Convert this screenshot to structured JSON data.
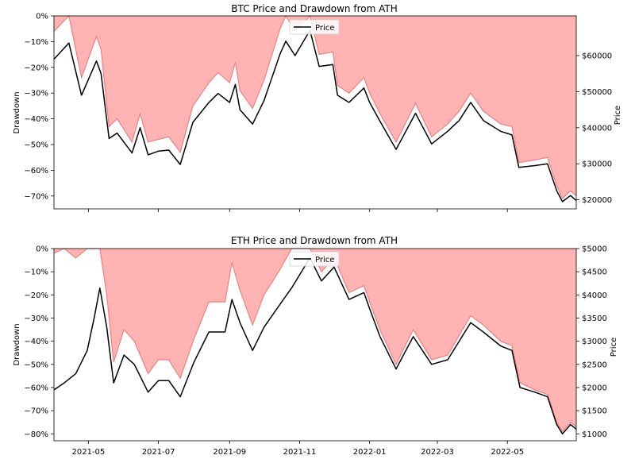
{
  "chart_data": [
    {
      "type": "area",
      "title": "BTC Price and Drawdown from ATH",
      "ylabel_left": "Drawdown",
      "ylabel_right": "Price",
      "drawdown_ylim": [
        -75,
        0
      ],
      "drawdown_ticks": [
        {
          "v": 0,
          "label": "0%"
        },
        {
          "v": -10,
          "label": "−10%"
        },
        {
          "v": -20,
          "label": "−20%"
        },
        {
          "v": -30,
          "label": "−30%"
        },
        {
          "v": -40,
          "label": "−40%"
        },
        {
          "v": -50,
          "label": "−50%"
        },
        {
          "v": -60,
          "label": "−60%"
        },
        {
          "v": -70,
          "label": "−70%"
        }
      ],
      "price_ylim": [
        17500,
        71000
      ],
      "price_ticks": [
        {
          "v": 20000,
          "label": "$20000"
        },
        {
          "v": 30000,
          "label": "$30000"
        },
        {
          "v": 40000,
          "label": "$40000"
        },
        {
          "v": 50000,
          "label": "$50000"
        },
        {
          "v": 60000,
          "label": "$60000"
        }
      ],
      "legend": [
        "Price"
      ],
      "legend_position": "top-center",
      "grid": false,
      "price_color": "#000000",
      "drawdown_fill_color": "#ffb3b3",
      "drawdown_line_color": "#f08080",
      "price_series": [
        [
          "2021-04-01",
          59000
        ],
        [
          "2021-04-14",
          63500
        ],
        [
          "2021-04-25",
          49000
        ],
        [
          "2021-05-08",
          58500
        ],
        [
          "2021-05-12",
          55000
        ],
        [
          "2021-05-19",
          37000
        ],
        [
          "2021-05-26",
          38500
        ],
        [
          "2021-06-08",
          33000
        ],
        [
          "2021-06-15",
          40000
        ],
        [
          "2021-06-22",
          32500
        ],
        [
          "2021-07-01",
          33500
        ],
        [
          "2021-07-10",
          33800
        ],
        [
          "2021-07-20",
          29800
        ],
        [
          "2021-07-31",
          41500
        ],
        [
          "2021-08-14",
          47000
        ],
        [
          "2021-08-22",
          49500
        ],
        [
          "2021-09-01",
          47000
        ],
        [
          "2021-09-06",
          52000
        ],
        [
          "2021-09-10",
          45000
        ],
        [
          "2021-09-21",
          41000
        ],
        [
          "2021-10-01",
          47500
        ],
        [
          "2021-10-15",
          60500
        ],
        [
          "2021-10-20",
          64000
        ],
        [
          "2021-10-28",
          60000
        ],
        [
          "2021-11-10",
          67000
        ],
        [
          "2021-11-18",
          57000
        ],
        [
          "2021-11-30",
          57500
        ],
        [
          "2021-12-04",
          49000
        ],
        [
          "2021-12-14",
          47000
        ],
        [
          "2021-12-27",
          51000
        ],
        [
          "2022-01-01",
          47000
        ],
        [
          "2022-01-10",
          41800
        ],
        [
          "2022-01-24",
          34000
        ],
        [
          "2022-02-10",
          44000
        ],
        [
          "2022-02-24",
          35500
        ],
        [
          "2022-03-10",
          39000
        ],
        [
          "2022-03-20",
          42000
        ],
        [
          "2022-03-30",
          47000
        ],
        [
          "2022-04-10",
          42000
        ],
        [
          "2022-04-25",
          39000
        ],
        [
          "2022-05-05",
          38000
        ],
        [
          "2022-05-11",
          29000
        ],
        [
          "2022-05-25",
          29500
        ],
        [
          "2022-06-05",
          30000
        ],
        [
          "2022-06-13",
          22500
        ],
        [
          "2022-06-18",
          19500
        ],
        [
          "2022-06-25",
          21200
        ],
        [
          "2022-06-30",
          19800
        ]
      ],
      "drawdown_series": [
        [
          "2021-04-01",
          -6
        ],
        [
          "2021-04-14",
          0
        ],
        [
          "2021-04-25",
          -24
        ],
        [
          "2021-05-08",
          -8
        ],
        [
          "2021-05-12",
          -13
        ],
        [
          "2021-05-19",
          -43
        ],
        [
          "2021-05-26",
          -40
        ],
        [
          "2021-06-08",
          -49
        ],
        [
          "2021-06-15",
          -38
        ],
        [
          "2021-06-22",
          -49
        ],
        [
          "2021-07-01",
          -48
        ],
        [
          "2021-07-10",
          -47
        ],
        [
          "2021-07-20",
          -53
        ],
        [
          "2021-07-31",
          -35
        ],
        [
          "2021-08-14",
          -26
        ],
        [
          "2021-08-22",
          -22
        ],
        [
          "2021-09-01",
          -26
        ],
        [
          "2021-09-06",
          -18
        ],
        [
          "2021-09-10",
          -29
        ],
        [
          "2021-09-21",
          -36
        ],
        [
          "2021-10-01",
          -25
        ],
        [
          "2021-10-15",
          -5
        ],
        [
          "2021-10-20",
          0
        ],
        [
          "2021-10-28",
          -6
        ],
        [
          "2021-11-10",
          0
        ],
        [
          "2021-11-18",
          -15
        ],
        [
          "2021-11-30",
          -14
        ],
        [
          "2021-12-04",
          -27
        ],
        [
          "2021-12-14",
          -30
        ],
        [
          "2021-12-27",
          -24
        ],
        [
          "2022-01-01",
          -30
        ],
        [
          "2022-01-10",
          -38
        ],
        [
          "2022-01-24",
          -49
        ],
        [
          "2022-02-10",
          -34
        ],
        [
          "2022-02-24",
          -47
        ],
        [
          "2022-03-10",
          -42
        ],
        [
          "2022-03-20",
          -37
        ],
        [
          "2022-03-30",
          -30
        ],
        [
          "2022-04-10",
          -37
        ],
        [
          "2022-04-25",
          -42
        ],
        [
          "2022-05-05",
          -43
        ],
        [
          "2022-05-11",
          -57
        ],
        [
          "2022-05-25",
          -56
        ],
        [
          "2022-06-05",
          -55
        ],
        [
          "2022-06-13",
          -66
        ],
        [
          "2022-06-18",
          -71
        ],
        [
          "2022-06-25",
          -68
        ],
        [
          "2022-06-30",
          -70
        ]
      ]
    },
    {
      "type": "area",
      "title": "ETH Price and Drawdown from ATH",
      "ylabel_left": "Drawdown",
      "ylabel_right": "Price",
      "drawdown_ylim": [
        -83,
        0
      ],
      "drawdown_ticks": [
        {
          "v": 0,
          "label": "0%"
        },
        {
          "v": -10,
          "label": "−10%"
        },
        {
          "v": -20,
          "label": "−20%"
        },
        {
          "v": -30,
          "label": "−30%"
        },
        {
          "v": -40,
          "label": "−40%"
        },
        {
          "v": -50,
          "label": "−50%"
        },
        {
          "v": -60,
          "label": "−60%"
        },
        {
          "v": -70,
          "label": "−70%"
        },
        {
          "v": -80,
          "label": "−80%"
        }
      ],
      "price_ylim": [
        850,
        5000
      ],
      "price_ticks": [
        {
          "v": 1000,
          "label": "$1000"
        },
        {
          "v": 1500,
          "label": "$1500"
        },
        {
          "v": 2000,
          "label": "$2000"
        },
        {
          "v": 2500,
          "label": "$2500"
        },
        {
          "v": 3000,
          "label": "$3000"
        },
        {
          "v": 3500,
          "label": "$3500"
        },
        {
          "v": 4000,
          "label": "$4000"
        },
        {
          "v": 4500,
          "label": "$4500"
        },
        {
          "v": 5000,
          "label": "$5000"
        }
      ],
      "legend": [
        "Price"
      ],
      "legend_position": "top-center",
      "grid": false,
      "price_color": "#000000",
      "drawdown_fill_color": "#ffb3b3",
      "drawdown_line_color": "#f08080",
      "price_series": [
        [
          "2021-04-01",
          1950
        ],
        [
          "2021-04-10",
          2100
        ],
        [
          "2021-04-20",
          2300
        ],
        [
          "2021-04-30",
          2800
        ],
        [
          "2021-05-06",
          3500
        ],
        [
          "2021-05-11",
          4150
        ],
        [
          "2021-05-17",
          3300
        ],
        [
          "2021-05-23",
          2100
        ],
        [
          "2021-06-01",
          2700
        ],
        [
          "2021-06-10",
          2500
        ],
        [
          "2021-06-22",
          1900
        ],
        [
          "2021-07-01",
          2150
        ],
        [
          "2021-07-10",
          2150
        ],
        [
          "2021-07-20",
          1800
        ],
        [
          "2021-08-01",
          2550
        ],
        [
          "2021-08-14",
          3200
        ],
        [
          "2021-08-28",
          3200
        ],
        [
          "2021-09-03",
          3900
        ],
        [
          "2021-09-10",
          3400
        ],
        [
          "2021-09-21",
          2800
        ],
        [
          "2021-10-01",
          3300
        ],
        [
          "2021-10-15",
          3800
        ],
        [
          "2021-10-25",
          4150
        ],
        [
          "2021-11-10",
          4800
        ],
        [
          "2021-11-20",
          4300
        ],
        [
          "2021-12-01",
          4600
        ],
        [
          "2021-12-14",
          3900
        ],
        [
          "2021-12-27",
          4050
        ],
        [
          "2022-01-01",
          3700
        ],
        [
          "2022-01-10",
          3100
        ],
        [
          "2022-01-24",
          2400
        ],
        [
          "2022-02-08",
          3100
        ],
        [
          "2022-02-24",
          2500
        ],
        [
          "2022-03-10",
          2600
        ],
        [
          "2022-03-30",
          3400
        ],
        [
          "2022-04-10",
          3200
        ],
        [
          "2022-04-25",
          2900
        ],
        [
          "2022-05-05",
          2800
        ],
        [
          "2022-05-12",
          2000
        ],
        [
          "2022-05-25",
          1900
        ],
        [
          "2022-06-05",
          1800
        ],
        [
          "2022-06-13",
          1200
        ],
        [
          "2022-06-18",
          1000
        ],
        [
          "2022-06-25",
          1200
        ],
        [
          "2022-06-30",
          1100
        ]
      ],
      "drawdown_series": [
        [
          "2021-04-01",
          -2
        ],
        [
          "2021-04-10",
          0
        ],
        [
          "2021-04-20",
          -4
        ],
        [
          "2021-04-30",
          0
        ],
        [
          "2021-05-06",
          0
        ],
        [
          "2021-05-11",
          0
        ],
        [
          "2021-05-17",
          -20
        ],
        [
          "2021-05-23",
          -49
        ],
        [
          "2021-06-01",
          -35
        ],
        [
          "2021-06-10",
          -40
        ],
        [
          "2021-06-22",
          -54
        ],
        [
          "2021-07-01",
          -48
        ],
        [
          "2021-07-10",
          -48
        ],
        [
          "2021-07-20",
          -56
        ],
        [
          "2021-08-01",
          -39
        ],
        [
          "2021-08-14",
          -23
        ],
        [
          "2021-08-28",
          -23
        ],
        [
          "2021-09-03",
          -6
        ],
        [
          "2021-09-10",
          -18
        ],
        [
          "2021-09-21",
          -33
        ],
        [
          "2021-10-01",
          -20
        ],
        [
          "2021-10-15",
          -9
        ],
        [
          "2021-10-25",
          0
        ],
        [
          "2021-11-10",
          0
        ],
        [
          "2021-11-20",
          -10
        ],
        [
          "2021-12-01",
          -4
        ],
        [
          "2021-12-14",
          -19
        ],
        [
          "2021-12-27",
          -16
        ],
        [
          "2022-01-01",
          -23
        ],
        [
          "2022-01-10",
          -35
        ],
        [
          "2022-01-24",
          -50
        ],
        [
          "2022-02-08",
          -35
        ],
        [
          "2022-02-24",
          -48
        ],
        [
          "2022-03-10",
          -46
        ],
        [
          "2022-03-30",
          -29
        ],
        [
          "2022-04-10",
          -33
        ],
        [
          "2022-04-25",
          -40
        ],
        [
          "2022-05-05",
          -42
        ],
        [
          "2022-05-12",
          -58
        ],
        [
          "2022-05-25",
          -61
        ],
        [
          "2022-06-05",
          -63
        ],
        [
          "2022-06-13",
          -75
        ],
        [
          "2022-06-18",
          -79
        ],
        [
          "2022-06-25",
          -75
        ],
        [
          "2022-06-30",
          -77
        ]
      ]
    }
  ],
  "x_axis": {
    "range": [
      "2021-04-01",
      "2022-06-30"
    ],
    "ticks": [
      {
        "date": "2021-05-01",
        "label": "2021-05"
      },
      {
        "date": "2021-07-01",
        "label": "2021-07"
      },
      {
        "date": "2021-09-01",
        "label": "2021-09"
      },
      {
        "date": "2021-11-01",
        "label": "2021-11"
      },
      {
        "date": "2022-01-01",
        "label": "2022-01"
      },
      {
        "date": "2022-03-01",
        "label": "2022-03"
      },
      {
        "date": "2022-05-01",
        "label": "2022-05"
      }
    ]
  }
}
